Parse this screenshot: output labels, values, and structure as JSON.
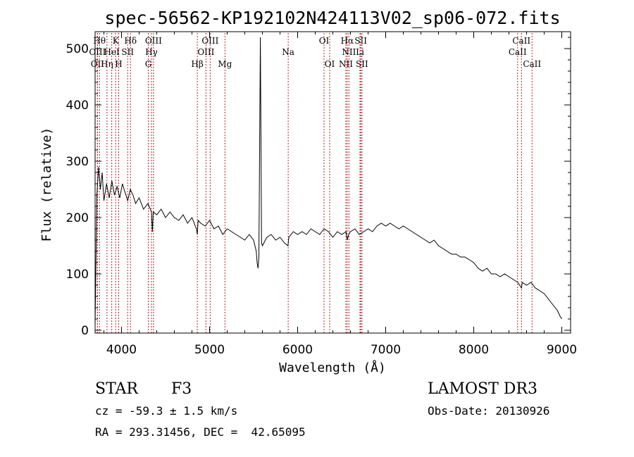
{
  "chart_data": {
    "type": "line",
    "title": "spec-56562-KP192102N424113V02_sp06-072.fits",
    "xlabel": "Wavelength (Å)",
    "ylabel": "Flux (relative)",
    "xlim": [
      3700,
      9100
    ],
    "ylim": [
      -5,
      530
    ],
    "x_ticks": [
      4000,
      5000,
      6000,
      7000,
      8000,
      9000
    ],
    "y_ticks": [
      0,
      100,
      200,
      300,
      400,
      500
    ],
    "grid": false,
    "series": [
      {
        "name": "flux",
        "x": [
          3700,
          3720,
          3740,
          3760,
          3780,
          3800,
          3830,
          3860,
          3890,
          3920,
          3950,
          3980,
          4010,
          4040,
          4070,
          4100,
          4130,
          4160,
          4200,
          4250,
          4300,
          4340,
          4350,
          4360,
          4400,
          4450,
          4500,
          4550,
          4600,
          4650,
          4700,
          4750,
          4800,
          4850,
          4861,
          4870,
          4900,
          4950,
          5000,
          5050,
          5100,
          5150,
          5200,
          5250,
          5300,
          5350,
          5400,
          5450,
          5500,
          5530,
          5540,
          5550,
          5560,
          5577,
          5590,
          5600,
          5650,
          5700,
          5750,
          5800,
          5850,
          5890,
          5900,
          5950,
          6000,
          6050,
          6100,
          6150,
          6200,
          6250,
          6300,
          6350,
          6400,
          6450,
          6500,
          6550,
          6563,
          6580,
          6600,
          6650,
          6700,
          6750,
          6800,
          6850,
          6900,
          6950,
          7000,
          7050,
          7100,
          7150,
          7200,
          7250,
          7300,
          7350,
          7400,
          7450,
          7500,
          7550,
          7600,
          7650,
          7700,
          7750,
          7800,
          7850,
          7900,
          7950,
          8000,
          8050,
          8100,
          8150,
          8200,
          8250,
          8300,
          8350,
          8400,
          8450,
          8500,
          8542,
          8550,
          8600,
          8650,
          8700,
          8750,
          8800,
          8850,
          8900,
          8950,
          8980,
          9000
        ],
        "y": [
          10,
          240,
          290,
          250,
          280,
          230,
          260,
          235,
          265,
          240,
          255,
          235,
          260,
          245,
          230,
          250,
          240,
          225,
          235,
          215,
          225,
          210,
          175,
          210,
          205,
          215,
          200,
          210,
          200,
          195,
          205,
          190,
          200,
          180,
          170,
          195,
          190,
          185,
          195,
          180,
          185,
          170,
          180,
          175,
          170,
          165,
          160,
          170,
          160,
          140,
          120,
          110,
          130,
          520,
          155,
          150,
          165,
          170,
          160,
          165,
          155,
          150,
          165,
          175,
          170,
          175,
          170,
          180,
          175,
          170,
          180,
          175,
          165,
          175,
          170,
          175,
          160,
          170,
          175,
          180,
          170,
          175,
          180,
          175,
          185,
          190,
          185,
          190,
          185,
          180,
          185,
          180,
          175,
          170,
          165,
          160,
          155,
          160,
          150,
          145,
          140,
          135,
          135,
          130,
          130,
          125,
          120,
          110,
          105,
          110,
          100,
          100,
          95,
          100,
          95,
          90,
          85,
          75,
          85,
          80,
          85,
          75,
          70,
          65,
          55,
          45,
          35,
          25,
          20
        ]
      }
    ],
    "line_marks": [
      {
        "label": "OII",
        "wavelength": 3727,
        "row": 2
      },
      {
        "label": "OIII",
        "wavelength": 3727,
        "row": 1
      },
      {
        "label": "Hθ",
        "wavelength": 3750,
        "row": 0
      },
      {
        "label": "Hη",
        "wavelength": 3835,
        "row": 2
      },
      {
        "label": "HeI",
        "wavelength": 3889,
        "row": 1
      },
      {
        "label": "K",
        "wavelength": 3934,
        "row": 0
      },
      {
        "label": "H",
        "wavelength": 3968,
        "row": 2
      },
      {
        "label": "SII",
        "wavelength": 4070,
        "row": 1
      },
      {
        "label": "Hδ",
        "wavelength": 4102,
        "row": 0
      },
      {
        "label": "OIII",
        "wavelength": 4363,
        "row": 0
      },
      {
        "label": "Hγ",
        "wavelength": 4340,
        "row": 1
      },
      {
        "label": "G",
        "wavelength": 4304,
        "row": 2
      },
      {
        "label": "Hβ",
        "wavelength": 4861,
        "row": 2
      },
      {
        "label": "OIII",
        "wavelength": 5007,
        "row": 0
      },
      {
        "label": "OIII",
        "wavelength": 4959,
        "row": 1
      },
      {
        "label": "Mg",
        "wavelength": 5175,
        "row": 2
      },
      {
        "label": "Na",
        "wavelength": 5893,
        "row": 1
      },
      {
        "label": "OI",
        "wavelength": 6300,
        "row": 0
      },
      {
        "label": "OI",
        "wavelength": 6364,
        "row": 2
      },
      {
        "label": "Hα",
        "wavelength": 6563,
        "row": 0
      },
      {
        "label": "SII",
        "wavelength": 6717,
        "row": 0
      },
      {
        "label": "NII",
        "wavelength": 6583,
        "row": 1
      },
      {
        "label": "Li",
        "wavelength": 6708,
        "row": 1
      },
      {
        "label": "NII",
        "wavelength": 6548,
        "row": 2
      },
      {
        "label": "SII",
        "wavelength": 6731,
        "row": 2
      },
      {
        "label": "CaII",
        "wavelength": 8542,
        "row": 0
      },
      {
        "label": "CaII",
        "wavelength": 8498,
        "row": 1
      },
      {
        "label": "CaII",
        "wavelength": 8662,
        "row": 2
      }
    ]
  },
  "info": {
    "object_class": "STAR",
    "subclass": "F3",
    "survey": "LAMOST DR3",
    "redshift": "cz = -59.3 ± 1.5 km/s",
    "obs_date": "Obs-Date: 20130926",
    "coords": "RA = 293.31456, DEC =  42.65095"
  },
  "colors": {
    "spectrum": "#000000",
    "line_marker": "#b22222",
    "axis": "#000000",
    "background": "#ffffff"
  }
}
